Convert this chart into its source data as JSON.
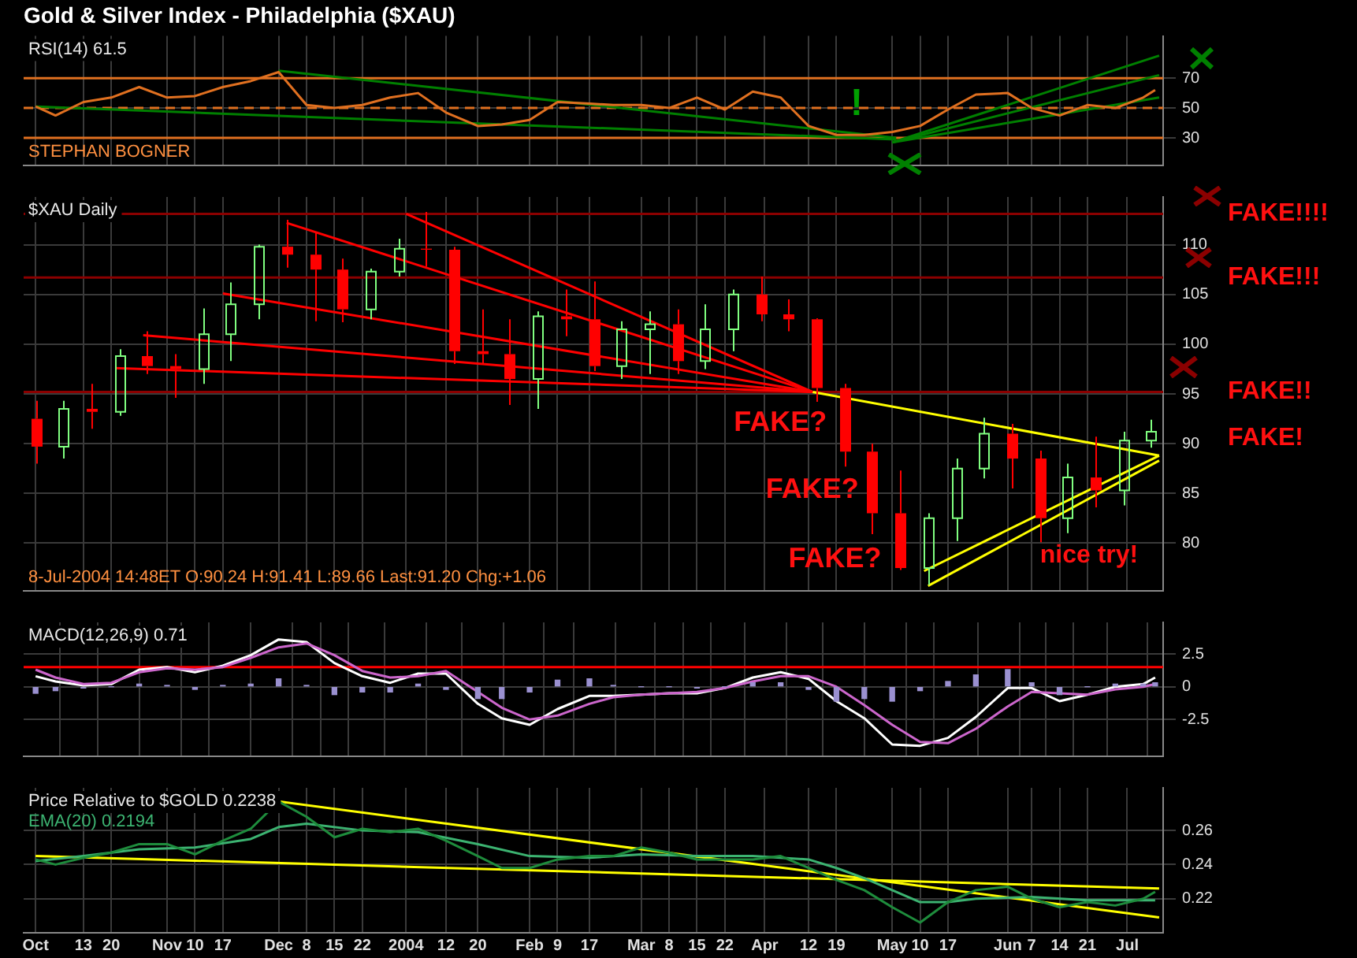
{
  "chart_data": [
    {
      "type": "line",
      "title": "Gold & Silver Index - Philadelphia ($XAU)",
      "subtitle": "RSI(14) 61.5",
      "x": [
        "2003-10-01",
        "2003-10-06",
        "2003-10-13",
        "2003-10-20",
        "2003-10-27",
        "2003-11-03",
        "2003-11-10",
        "2003-11-17",
        "2003-11-24",
        "2003-12-01",
        "2003-12-08",
        "2003-12-15",
        "2003-12-22",
        "2003-12-29",
        "2004-01-05",
        "2004-01-12",
        "2004-01-20",
        "2004-01-26",
        "2004-02-02",
        "2004-02-09",
        "2004-02-17",
        "2004-02-23",
        "2004-03-01",
        "2004-03-08",
        "2004-03-15",
        "2004-03-22",
        "2004-03-29",
        "2004-04-05",
        "2004-04-12",
        "2004-04-19",
        "2004-04-26",
        "2004-05-03",
        "2004-05-10",
        "2004-05-17",
        "2004-05-24",
        "2004-06-01",
        "2004-06-07",
        "2004-06-14",
        "2004-06-21",
        "2004-06-28",
        "2004-07-05",
        "2004-07-08"
      ],
      "series": [
        {
          "color": "#e07020",
          "values": [
            51,
            45,
            54,
            57,
            64,
            57,
            58,
            64,
            68,
            74,
            52,
            50,
            52,
            57,
            60,
            47,
            38,
            39,
            42,
            54,
            53,
            52,
            52,
            50,
            57,
            49,
            61,
            57,
            38,
            32,
            32,
            34,
            38,
            49,
            59,
            60,
            50,
            45,
            52,
            50,
            57,
            62
          ]
        },
        {
          "type": "line",
          "color": "#008000",
          "x": [
            "2003-10-01",
            "2004-05-04"
          ],
          "values": [
            51,
            29
          ]
        },
        {
          "type": "line",
          "color": "#008000",
          "x": [
            "2003-12-01",
            "2004-05-04"
          ],
          "values": [
            75,
            30
          ]
        },
        {
          "type": "line",
          "color": "#008000",
          "x": [
            "2004-05-03",
            "2004-07-09"
          ],
          "values": [
            27,
            72
          ]
        },
        {
          "type": "line",
          "color": "#008000",
          "x": [
            "2004-05-03",
            "2004-07-09"
          ],
          "values": [
            27,
            85
          ]
        },
        {
          "type": "line",
          "color": "#008000",
          "x": [
            "2004-05-03",
            "2004-07-09"
          ],
          "values": [
            27,
            57
          ]
        }
      ],
      "xlim": [
        "2003-09-28",
        "2004-07-10"
      ],
      "ylim": [
        11.6,
        98.2
      ],
      "yticks": [
        30,
        50,
        70
      ],
      "xticks": [
        {
          "value": "2003-10-01",
          "label": null
        },
        {
          "value": "2003-10-13",
          "label": null
        },
        {
          "value": "2003-10-20",
          "label": null
        },
        {
          "value": "2003-11-03",
          "label": null
        },
        {
          "value": "2003-11-10",
          "label": null
        },
        {
          "value": "2003-11-17",
          "label": null
        },
        {
          "value": "2003-12-01",
          "label": null
        },
        {
          "value": "2003-12-08",
          "label": null
        },
        {
          "value": "2003-12-15",
          "label": null
        },
        {
          "value": "2003-12-22",
          "label": null
        },
        {
          "value": "2004-01-02",
          "label": null
        },
        {
          "value": "2004-01-12",
          "label": null
        },
        {
          "value": "2004-01-20",
          "label": null
        },
        {
          "value": "2004-02-02",
          "label": null
        },
        {
          "value": "2004-02-09",
          "label": null
        },
        {
          "value": "2004-02-17",
          "label": null
        },
        {
          "value": "2004-03-01",
          "label": null
        },
        {
          "value": "2004-03-08",
          "label": null
        },
        {
          "value": "2004-03-15",
          "label": null
        },
        {
          "value": "2004-03-22",
          "label": null
        },
        {
          "value": "2004-04-01",
          "label": null
        },
        {
          "value": "2004-04-12",
          "label": null
        },
        {
          "value": "2004-04-19",
          "label": null
        },
        {
          "value": "2004-05-03",
          "label": null
        },
        {
          "value": "2004-05-10",
          "label": null
        },
        {
          "value": "2004-05-17",
          "label": null
        },
        {
          "value": "2004-06-01",
          "label": null
        },
        {
          "value": "2004-06-07",
          "label": null
        },
        {
          "value": "2004-06-14",
          "label": null
        },
        {
          "value": "2004-06-21",
          "label": null
        },
        {
          "value": "2004-07-01",
          "label": null
        }
      ],
      "ref_lines": [
        {
          "axis": "y",
          "value": 70,
          "color": "#e07020"
        },
        {
          "axis": "y",
          "value": 50,
          "color": "#e07020",
          "line_style": "dashed"
        },
        {
          "axis": "y",
          "value": 30,
          "color": "#e07020"
        }
      ],
      "annotations": [
        "STEPHAN BOGNER",
        "!"
      ],
      "grid": true,
      "tick_labels": "y"
    },
    {
      "type": "candlestick",
      "subtitle": "$XAU Daily",
      "x": [
        "2003-10-01",
        "2003-10-08",
        "2003-10-15",
        "2003-10-22",
        "2003-10-29",
        "2003-11-05",
        "2003-11-12",
        "2003-11-19",
        "2003-11-26",
        "2003-12-03",
        "2003-12-10",
        "2003-12-17",
        "2003-12-24",
        "2003-12-31",
        "2004-01-07",
        "2004-01-14",
        "2004-01-21",
        "2004-01-28",
        "2004-02-04",
        "2004-02-11",
        "2004-02-18",
        "2004-02-25",
        "2004-03-03",
        "2004-03-10",
        "2004-03-17",
        "2004-03-24",
        "2004-03-31",
        "2004-04-07",
        "2004-04-14",
        "2004-04-21",
        "2004-04-28",
        "2004-05-05",
        "2004-05-12",
        "2004-05-19",
        "2004-05-26",
        "2004-06-02",
        "2004-06-09",
        "2004-06-16",
        "2004-06-23",
        "2004-06-30",
        "2004-07-07"
      ],
      "ohlc": [
        [
          92.5,
          94.3,
          88,
          89.7
        ],
        [
          89.7,
          94.3,
          88.5,
          93.5
        ],
        [
          93.5,
          96,
          91.5,
          93.2
        ],
        [
          93.2,
          99.5,
          92.8,
          98.8
        ],
        [
          98.8,
          101.3,
          97,
          97.8
        ],
        [
          97.8,
          99,
          94.6,
          97.5
        ],
        [
          97.5,
          103.6,
          96,
          101
        ],
        [
          101,
          106.2,
          98.3,
          104
        ],
        [
          104,
          110,
          102.5,
          109.8
        ],
        [
          109.8,
          112.5,
          107.7,
          109
        ],
        [
          109,
          111.3,
          102.3,
          107.5
        ],
        [
          107.5,
          108.6,
          102.2,
          103.5
        ],
        [
          103.5,
          107.6,
          102.5,
          107.3
        ],
        [
          107.3,
          110.6,
          106.8,
          109.6
        ],
        [
          109.6,
          113.3,
          107.8,
          109.5
        ],
        [
          109.5,
          109.8,
          98,
          99.3
        ],
        [
          99.3,
          103.5,
          98,
          99
        ],
        [
          99,
          102.5,
          93.9,
          96.5
        ],
        [
          96.5,
          103.3,
          93.5,
          102.8
        ],
        [
          102.8,
          105.5,
          100.8,
          102.5
        ],
        [
          102.5,
          106.3,
          97.3,
          97.8
        ],
        [
          97.8,
          102.3,
          96.5,
          101.5
        ],
        [
          101.5,
          103.3,
          97,
          102
        ],
        [
          102,
          103.5,
          97,
          98.3
        ],
        [
          98.3,
          104,
          97.5,
          101.5
        ],
        [
          101.5,
          105.5,
          99.3,
          105
        ],
        [
          105,
          106.8,
          102.3,
          103
        ],
        [
          103,
          104.5,
          101.3,
          102.5
        ],
        [
          102.5,
          102.6,
          94.2,
          95.6
        ],
        [
          95.6,
          96,
          87.7,
          89.2
        ],
        [
          89.2,
          90,
          80.9,
          83
        ],
        [
          83,
          87.3,
          77.3,
          77.5
        ],
        [
          77.5,
          83,
          75.8,
          82.5
        ],
        [
          82.5,
          88.5,
          80.2,
          87.5
        ],
        [
          87.5,
          92.6,
          86.5,
          91
        ],
        [
          91,
          92,
          85.5,
          88.5
        ],
        [
          88.5,
          89.3,
          80.1,
          82.5
        ],
        [
          82.5,
          88,
          81,
          86.6
        ],
        [
          86.6,
          90.7,
          83.6,
          85.3
        ],
        [
          85.3,
          91.2,
          83.8,
          90.3
        ],
        [
          90.3,
          92.4,
          89.6,
          91.2
        ]
      ],
      "colors": [
        "#ff0000",
        "#80ff80",
        "#ff0000",
        "#80ff80",
        "#ff0000",
        "#ff0000",
        "#80ff80",
        "#80ff80",
        "#80ff80",
        "#ff0000",
        "#ff0000",
        "#ff0000",
        "#80ff80",
        "#80ff80",
        "#ff0000",
        "#ff0000",
        "#ff0000",
        "#ff0000",
        "#80ff80",
        "#ff0000",
        "#ff0000",
        "#80ff80",
        "#80ff80",
        "#ff0000",
        "#80ff80",
        "#80ff80",
        "#ff0000",
        "#ff0000",
        "#ff0000",
        "#ff0000",
        "#ff0000",
        "#ff0000",
        "#80ff80",
        "#80ff80",
        "#80ff80",
        "#ff0000",
        "#ff0000",
        "#80ff80",
        "#ff0000",
        "#80ff80",
        "#80ff80"
      ],
      "series": [
        {
          "type": "line",
          "color": "#ff0000",
          "x": [
            "2004-01-02",
            "2004-04-13"
          ],
          "values": [
            113.1,
            95.2
          ]
        },
        {
          "type": "line",
          "color": "#ff0000",
          "x": [
            "2003-10-21",
            "2004-04-13"
          ],
          "values": [
            97.6,
            95.2
          ]
        },
        {
          "type": "line",
          "color": "#ff0000",
          "x": [
            "2003-12-03",
            "2004-04-13"
          ],
          "values": [
            112.2,
            95.2
          ]
        },
        {
          "type": "line",
          "color": "#ff0000",
          "x": [
            "2003-11-17",
            "2004-04-13"
          ],
          "values": [
            105.1,
            95.2
          ]
        },
        {
          "type": "line",
          "color": "#ff0000",
          "x": [
            "2003-10-28",
            "2004-04-13"
          ],
          "values": [
            100.9,
            95.2
          ]
        },
        {
          "type": "line",
          "color": "#ffff00",
          "x": [
            "2004-04-13",
            "2004-07-09"
          ],
          "values": [
            95.2,
            88.8
          ]
        },
        {
          "type": "line",
          "color": "#ffff00",
          "x": [
            "2004-05-11",
            "2004-07-09"
          ],
          "values": [
            77.2,
            88.8
          ]
        },
        {
          "type": "line",
          "color": "#ffff00",
          "x": [
            "2004-05-12",
            "2004-07-09"
          ],
          "values": [
            75.7,
            88.3
          ]
        }
      ],
      "xlim": [
        "2003-09-28",
        "2004-07-10"
      ],
      "ylim": [
        75.2,
        114.8
      ],
      "yticks": [
        80,
        85,
        90,
        95,
        100,
        105,
        110
      ],
      "xticks": [
        {
          "value": "2003-10-01",
          "label": null
        },
        {
          "value": "2003-10-13",
          "label": null
        },
        {
          "value": "2003-10-20",
          "label": null
        },
        {
          "value": "2003-11-03",
          "label": null
        },
        {
          "value": "2003-11-10",
          "label": null
        },
        {
          "value": "2003-11-17",
          "label": null
        },
        {
          "value": "2003-12-01",
          "label": null
        },
        {
          "value": "2003-12-08",
          "label": null
        },
        {
          "value": "2003-12-15",
          "label": null
        },
        {
          "value": "2003-12-22",
          "label": null
        },
        {
          "value": "2004-01-02",
          "label": null
        },
        {
          "value": "2004-01-12",
          "label": null
        },
        {
          "value": "2004-01-20",
          "label": null
        },
        {
          "value": "2004-02-02",
          "label": null
        },
        {
          "value": "2004-02-09",
          "label": null
        },
        {
          "value": "2004-02-17",
          "label": null
        },
        {
          "value": "2004-03-01",
          "label": null
        },
        {
          "value": "2004-03-08",
          "label": null
        },
        {
          "value": "2004-03-15",
          "label": null
        },
        {
          "value": "2004-03-22",
          "label": null
        },
        {
          "value": "2004-04-01",
          "label": null
        },
        {
          "value": "2004-04-12",
          "label": null
        },
        {
          "value": "2004-04-19",
          "label": null
        },
        {
          "value": "2004-05-03",
          "label": null
        },
        {
          "value": "2004-05-10",
          "label": null
        },
        {
          "value": "2004-05-17",
          "label": null
        },
        {
          "value": "2004-06-01",
          "label": null
        },
        {
          "value": "2004-06-07",
          "label": null
        },
        {
          "value": "2004-06-14",
          "label": null
        },
        {
          "value": "2004-06-21",
          "label": null
        },
        {
          "value": "2004-07-01",
          "label": null
        }
      ],
      "ref_lines": [
        {
          "axis": "y",
          "value": 113.1,
          "label": "FAKE!!!!",
          "color": "#8b0000"
        },
        {
          "axis": "y",
          "value": 106.7,
          "label": "FAKE!!!",
          "color": "#8b0000"
        },
        {
          "axis": "y",
          "value": 95.2,
          "label": "FAKE!!",
          "color": "#8b0000"
        }
      ],
      "annotations": [
        "8-Jul-2004 14:48ET O:90.24 H:91.41 L:89.66 Last:91.20 Chg:+1.06",
        "FAKE?",
        "FAKE?",
        "FAKE?",
        "nice try!",
        "FAKE!"
      ],
      "grid": true,
      "tick_labels": "y"
    },
    {
      "type": "line",
      "subtitle": "MACD(12,26,9) 0.71",
      "x": [
        "2003-10-01",
        "2003-10-06",
        "2003-10-13",
        "2003-10-20",
        "2003-10-27",
        "2003-11-03",
        "2003-11-10",
        "2003-11-17",
        "2003-11-24",
        "2003-12-01",
        "2003-12-08",
        "2003-12-15",
        "2003-12-22",
        "2003-12-29",
        "2004-01-05",
        "2004-01-12",
        "2004-01-20",
        "2004-01-26",
        "2004-02-02",
        "2004-02-09",
        "2004-02-17",
        "2004-02-23",
        "2004-03-01",
        "2004-03-08",
        "2004-03-15",
        "2004-03-22",
        "2004-03-29",
        "2004-04-05",
        "2004-04-12",
        "2004-04-19",
        "2004-04-26",
        "2004-05-03",
        "2004-05-10",
        "2004-05-17",
        "2004-05-24",
        "2004-06-01",
        "2004-06-07",
        "2004-06-14",
        "2004-06-21",
        "2004-06-28",
        "2004-07-05",
        "2004-07-08"
      ],
      "series": [
        {
          "type": "bar",
          "color": "#9a90d0",
          "values": [
            -0.5,
            -0.3,
            -0.1,
            0,
            0.2,
            0.1,
            -0.2,
            0.1,
            0.2,
            0.6,
            0.1,
            -0.6,
            -0.4,
            -0.4,
            0.2,
            -0.2,
            -0.9,
            -0.9,
            -0.4,
            0.5,
            0.6,
            0.1,
            0,
            0,
            -0.1,
            0,
            0.3,
            0.3,
            -0.2,
            -1.1,
            -0.9,
            -1.1,
            -0.3,
            0.4,
            0.9,
            1.3,
            0.3,
            -0.6,
            0,
            0.2,
            0.2,
            0.3
          ]
        },
        {
          "type": "line",
          "color": "#cc66cc",
          "values": [
            1.3,
            0.7,
            0.2,
            0.3,
            1.1,
            1.4,
            1.3,
            1.5,
            2.2,
            3.0,
            3.3,
            2.4,
            1.2,
            0.7,
            0.8,
            1.2,
            -0.4,
            -1.6,
            -2.5,
            -2.2,
            -1.3,
            -0.8,
            -0.6,
            -0.5,
            -0.4,
            -0.1,
            0.4,
            0.8,
            0.8,
            0,
            -1.4,
            -2.9,
            -4.2,
            -4.3,
            -3.2,
            -1.5,
            -0.4,
            -0.5,
            -0.6,
            -0.2,
            0,
            0.2
          ]
        },
        {
          "type": "line",
          "color": "#ffffff",
          "values": [
            0.8,
            0.4,
            0.1,
            0.2,
            1.3,
            1.5,
            1.1,
            1.6,
            2.4,
            3.6,
            3.4,
            1.8,
            0.8,
            0.3,
            1.0,
            1.0,
            -1.3,
            -2.4,
            -2.9,
            -1.7,
            -0.7,
            -0.7,
            -0.6,
            -0.5,
            -0.5,
            -0.1,
            0.7,
            1.1,
            0.6,
            -1.1,
            -2.4,
            -4.4,
            -4.5,
            -3.9,
            -2.3,
            -0.1,
            -0.1,
            -1.1,
            -0.6,
            0,
            0.2,
            0.7
          ]
        }
      ],
      "xlim": [
        "2003-09-28",
        "2004-07-10"
      ],
      "ylim": [
        -5.3,
        4.9
      ],
      "yticks": [
        -2.5,
        0,
        2.5
      ],
      "xticks": [
        {
          "value": "2003-10-01",
          "label": null
        },
        {
          "value": "2003-10-13",
          "label": null
        },
        {
          "value": "2003-10-20",
          "label": null
        },
        {
          "value": "2003-11-03",
          "label": null
        },
        {
          "value": "2003-11-10",
          "label": null
        },
        {
          "value": "2003-11-17",
          "label": null
        },
        {
          "value": "2003-12-01",
          "label": null
        },
        {
          "value": "2003-12-08",
          "label": null
        },
        {
          "value": "2003-12-15",
          "label": null
        },
        {
          "value": "2003-12-22",
          "label": null
        },
        {
          "value": "2004-01-02",
          "label": null
        },
        {
          "value": "2004-01-12",
          "label": null
        },
        {
          "value": "2004-01-20",
          "label": null
        },
        {
          "value": "2004-02-02",
          "label": null
        },
        {
          "value": "2004-02-09",
          "label": null
        },
        {
          "value": "2004-02-17",
          "label": null
        },
        {
          "value": "2004-03-01",
          "label": null
        },
        {
          "value": "2004-03-08",
          "label": null
        },
        {
          "value": "2004-03-15",
          "label": null
        },
        {
          "value": "2004-03-22",
          "label": null
        },
        {
          "value": "2004-04-01",
          "label": null
        },
        {
          "value": "2004-04-12",
          "label": null
        },
        {
          "value": "2004-04-19",
          "label": null
        },
        {
          "value": "2004-05-03",
          "label": null
        },
        {
          "value": "2004-05-10",
          "label": null
        },
        {
          "value": "2004-05-17",
          "label": null
        },
        {
          "value": "2004-06-01",
          "label": null
        },
        {
          "value": "2004-06-07",
          "label": null
        },
        {
          "value": "2004-06-14",
          "label": null
        },
        {
          "value": "2004-06-21",
          "label": null
        },
        {
          "value": "2004-07-01",
          "label": null
        }
      ],
      "ref_lines": [
        {
          "axis": "y",
          "value": 1.5,
          "color": "#ff0000"
        }
      ],
      "grid": true,
      "tick_labels": "y"
    },
    {
      "type": "line",
      "subtitle": "Price Relative to $GOLD 0.2238",
      "x": [
        "2003-10-01",
        "2003-10-06",
        "2003-10-13",
        "2003-10-20",
        "2003-10-27",
        "2003-11-03",
        "2003-11-10",
        "2003-11-17",
        "2003-11-24",
        "2003-12-01",
        "2003-12-08",
        "2003-12-15",
        "2003-12-22",
        "2003-12-29",
        "2004-01-05",
        "2004-01-12",
        "2004-01-20",
        "2004-01-26",
        "2004-02-02",
        "2004-02-09",
        "2004-02-17",
        "2004-02-23",
        "2004-03-01",
        "2004-03-08",
        "2004-03-15",
        "2004-03-22",
        "2004-03-29",
        "2004-04-05",
        "2004-04-12",
        "2004-04-19",
        "2004-04-26",
        "2004-05-03",
        "2004-05-10",
        "2004-05-17",
        "2004-05-24",
        "2004-06-01",
        "2004-06-07",
        "2004-06-14",
        "2004-06-21",
        "2004-06-28",
        "2004-07-05",
        "2004-07-08"
      ],
      "series": [
        {
          "color": "#1e8c3c",
          "values": [
            0.243,
            0.24,
            0.244,
            0.247,
            0.252,
            0.252,
            0.246,
            0.254,
            0.261,
            0.277,
            0.268,
            0.256,
            0.261,
            0.259,
            0.261,
            0.254,
            0.245,
            0.238,
            0.238,
            0.243,
            0.245,
            0.245,
            0.25,
            0.247,
            0.243,
            0.243,
            0.243,
            0.245,
            0.238,
            0.231,
            0.225,
            0.215,
            0.206,
            0.218,
            0.225,
            0.227,
            0.22,
            0.215,
            0.218,
            0.216,
            0.22,
            0.224
          ]
        },
        {
          "name": "EMA(20) 0.2194",
          "color": "#3cb371",
          "x": [
            "2003-10-01",
            "2003-10-13",
            "2003-10-27",
            "2003-11-10",
            "2003-11-24",
            "2003-12-01",
            "2003-12-08",
            "2003-12-22",
            "2004-01-05",
            "2004-01-20",
            "2004-02-02",
            "2004-02-17",
            "2004-03-01",
            "2004-03-15",
            "2004-03-29",
            "2004-04-12",
            "2004-04-19",
            "2004-04-26",
            "2004-05-03",
            "2004-05-10",
            "2004-05-17",
            "2004-05-24",
            "2004-06-07",
            "2004-06-21",
            "2004-07-08"
          ],
          "values": [
            0.242,
            0.245,
            0.249,
            0.25,
            0.255,
            0.262,
            0.264,
            0.26,
            0.259,
            0.252,
            0.245,
            0.244,
            0.246,
            0.245,
            0.245,
            0.243,
            0.238,
            0.232,
            0.225,
            0.218,
            0.218,
            0.22,
            0.221,
            0.219,
            0.219
          ]
        },
        {
          "type": "line",
          "color": "#ffff00",
          "x": [
            "2003-12-01",
            "2004-07-09"
          ],
          "values": [
            0.277,
            0.209
          ]
        },
        {
          "type": "line",
          "color": "#ffff00",
          "x": [
            "2003-10-01",
            "2004-07-09"
          ],
          "values": [
            0.245,
            0.226
          ]
        }
      ],
      "xlim": [
        "2003-09-28",
        "2004-07-10"
      ],
      "ylim": [
        0.2,
        0.285
      ],
      "yticks": [
        0.22,
        0.24,
        0.26
      ],
      "xticks": [
        {
          "value": "2003-10-01",
          "label": "Oct"
        },
        {
          "value": "2003-10-13",
          "label": "13"
        },
        {
          "value": "2003-10-20",
          "label": "20"
        },
        {
          "value": "2003-11-03",
          "label": "Nov"
        },
        {
          "value": "2003-11-10",
          "label": "10"
        },
        {
          "value": "2003-11-17",
          "label": "17"
        },
        {
          "value": "2003-12-01",
          "label": "Dec"
        },
        {
          "value": "2003-12-08",
          "label": "8"
        },
        {
          "value": "2003-12-15",
          "label": "15"
        },
        {
          "value": "2003-12-22",
          "label": "22"
        },
        {
          "value": "2004-01-02",
          "label": "2004"
        },
        {
          "value": "2004-01-12",
          "label": "12"
        },
        {
          "value": "2004-01-20",
          "label": "20"
        },
        {
          "value": "2004-02-02",
          "label": "Feb"
        },
        {
          "value": "2004-02-09",
          "label": "9"
        },
        {
          "value": "2004-02-17",
          "label": "17"
        },
        {
          "value": "2004-03-01",
          "label": "Mar"
        },
        {
          "value": "2004-03-08",
          "label": "8"
        },
        {
          "value": "2004-03-15",
          "label": "15"
        },
        {
          "value": "2004-03-22",
          "label": "22"
        },
        {
          "value": "2004-04-01",
          "label": "Apr"
        },
        {
          "value": "2004-04-12",
          "label": "12"
        },
        {
          "value": "2004-04-19",
          "label": "19"
        },
        {
          "value": "2004-05-03",
          "label": "May"
        },
        {
          "value": "2004-05-10",
          "label": "10"
        },
        {
          "value": "2004-05-17",
          "label": "17"
        },
        {
          "value": "2004-06-01",
          "label": "Jun"
        },
        {
          "value": "2004-06-07",
          "label": "7"
        },
        {
          "value": "2004-06-14",
          "label": "14"
        },
        {
          "value": "2004-06-21",
          "label": "21"
        },
        {
          "value": "2004-07-01",
          "label": "Jul"
        }
      ],
      "legend": "top left",
      "grid": true
    }
  ]
}
